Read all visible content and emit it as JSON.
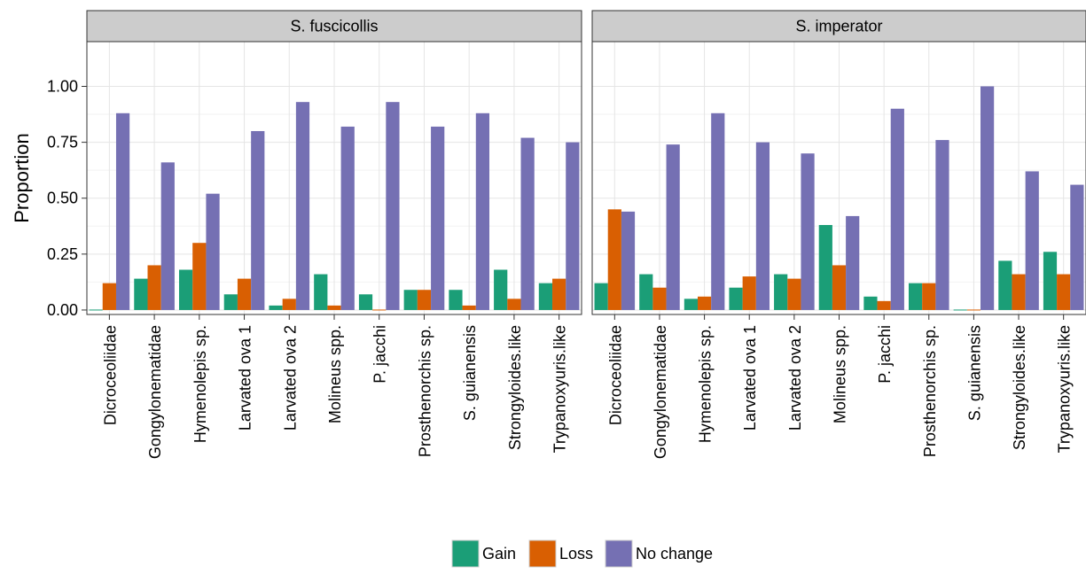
{
  "chart_data": {
    "type": "bar",
    "ylabel": "Proportion",
    "ylim": [
      -0.02,
      1.2
    ],
    "yticks": [
      0.0,
      0.25,
      0.5,
      0.75,
      1.0
    ],
    "ytick_labels": [
      "0.00",
      "0.25",
      "0.50",
      "0.75",
      "1.00"
    ],
    "grid": true,
    "legend_position": "bottom",
    "categories": [
      "Dicroceoliidae",
      "Gongylonematidae",
      "Hymenolepis sp.",
      "Larvated ova 1",
      "Larvated ova 2",
      "Molineus spp.",
      "P. jacchi",
      "Prosthenorchis sp.",
      "S. guianensis",
      "Strongyloides.like",
      "Trypanoxyuris.like"
    ],
    "series_meta": [
      {
        "name": "Gain",
        "color": "#1b9e77"
      },
      {
        "name": "Loss",
        "color": "#d95f02"
      },
      {
        "name": "No change",
        "color": "#7570b3"
      }
    ],
    "panels": [
      {
        "title": "S. fuscicollis",
        "series": [
          {
            "name": "Gain",
            "values": [
              0.0,
              0.14,
              0.18,
              0.07,
              0.02,
              0.16,
              0.07,
              0.09,
              0.09,
              0.18,
              0.12
            ]
          },
          {
            "name": "Loss",
            "values": [
              0.12,
              0.2,
              0.3,
              0.14,
              0.05,
              0.02,
              0.0,
              0.09,
              0.02,
              0.05,
              0.14
            ]
          },
          {
            "name": "No change",
            "values": [
              0.88,
              0.66,
              0.52,
              0.8,
              0.93,
              0.82,
              0.93,
              0.82,
              0.88,
              0.77,
              0.75
            ]
          }
        ]
      },
      {
        "title": "S. imperator",
        "series": [
          {
            "name": "Gain",
            "values": [
              0.12,
              0.16,
              0.05,
              0.1,
              0.16,
              0.38,
              0.06,
              0.12,
              0.0,
              0.22,
              0.26
            ]
          },
          {
            "name": "Loss",
            "values": [
              0.45,
              0.1,
              0.06,
              0.15,
              0.14,
              0.2,
              0.04,
              0.12,
              0.0,
              0.16,
              0.16
            ]
          },
          {
            "name": "No change",
            "values": [
              0.44,
              0.74,
              0.88,
              0.75,
              0.7,
              0.42,
              0.9,
              0.76,
              1.0,
              0.62,
              0.56
            ]
          }
        ]
      }
    ]
  }
}
